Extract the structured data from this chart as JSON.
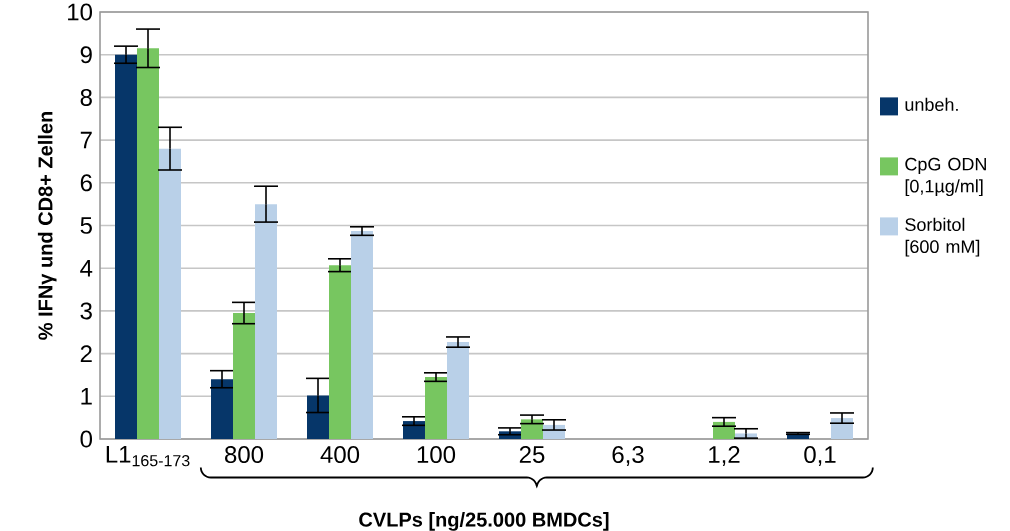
{
  "chart_data": {
    "type": "bar",
    "ylabel": "%  IFNγ und  CD8+ Zellen",
    "xlabel": "CVLPs [ng/25.000 BMDCs]",
    "categories": [
      "L1$_{165-173}$",
      "800",
      "400",
      "100",
      "25",
      "6,3",
      "1,2",
      "0,1"
    ],
    "series": [
      {
        "name": "unbeh.",
        "color": "#063669",
        "values": [
          9.0,
          1.4,
          1.02,
          0.42,
          0.18,
          null,
          null,
          0.13
        ],
        "errors": [
          0.2,
          0.2,
          0.4,
          0.1,
          0.08,
          null,
          null,
          0.02
        ]
      },
      {
        "name": "CpG ODN [0,1µg/ml]",
        "color": "#77c660",
        "values": [
          9.15,
          2.95,
          4.07,
          1.45,
          0.46,
          null,
          0.4,
          null
        ],
        "errors": [
          0.45,
          0.25,
          0.15,
          0.1,
          0.1,
          null,
          0.1,
          null
        ]
      },
      {
        "name": "Sorbitol [600 mM]",
        "color": "#b9d0e8",
        "values": [
          6.8,
          5.5,
          4.87,
          2.27,
          0.33,
          null,
          0.13,
          0.49
        ],
        "errors": [
          0.5,
          0.42,
          0.1,
          0.12,
          0.12,
          null,
          0.11,
          0.12
        ]
      }
    ],
    "ylim": [
      0,
      10
    ],
    "yticks": [
      0,
      1,
      2,
      3,
      4,
      5,
      6,
      7,
      8,
      9,
      10
    ],
    "grid": "y",
    "legend": "right"
  }
}
